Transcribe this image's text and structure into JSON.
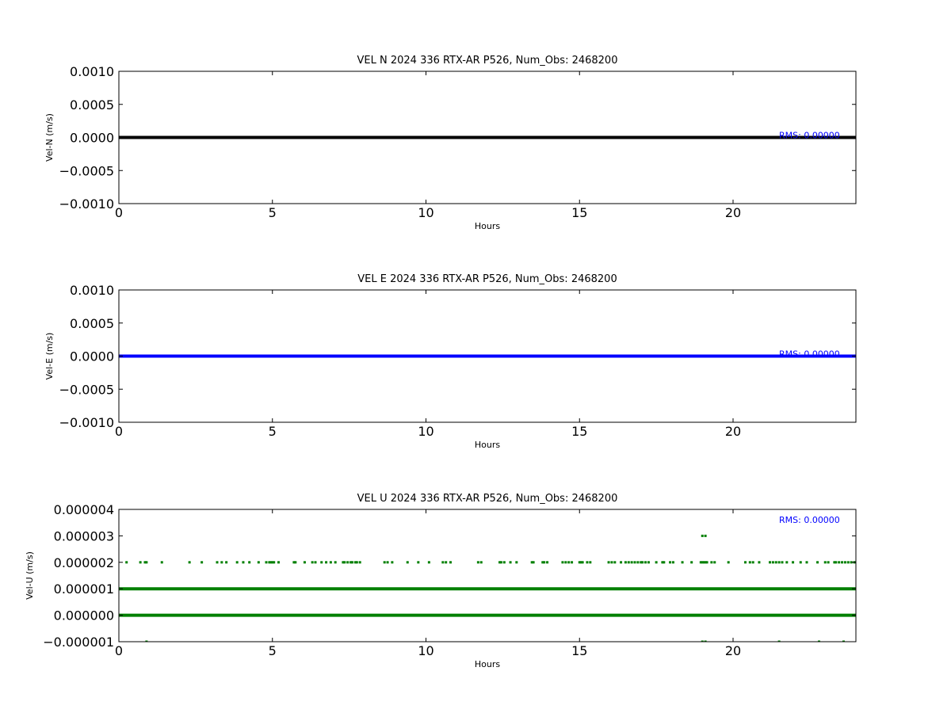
{
  "chart_data": [
    {
      "type": "line",
      "title": "VEL N 2024 336 RTX-AR  P526, Num_Obs: 2468200",
      "xlabel": "Hours",
      "ylabel": "Vel-N (m/s)",
      "xlim": [
        0,
        24
      ],
      "ylim": [
        -0.001,
        0.001
      ],
      "xticks": [
        0,
        5,
        10,
        15,
        20
      ],
      "xtick_labels": [
        "0",
        "5",
        "10",
        "15",
        "20"
      ],
      "yticks": [
        -0.001,
        -0.0005,
        0,
        0.0005,
        0.001
      ],
      "ytick_labels": [
        "−0.0010",
        "−0.0005",
        "0.0000",
        "0.0005",
        "0.0010"
      ],
      "grid": false,
      "color": "#000000",
      "annotation": "RMS:  0.00000",
      "annotation_color": "#0000ff",
      "series": [
        {
          "values_constant": 0,
          "x_range": [
            0,
            24
          ]
        }
      ]
    },
    {
      "type": "line",
      "title": "VEL E 2024 336 RTX-AR  P526, Num_Obs: 2468200",
      "xlabel": "Hours",
      "ylabel": "Vel-E (m/s)",
      "xlim": [
        0,
        24
      ],
      "ylim": [
        -0.001,
        0.001
      ],
      "xticks": [
        0,
        5,
        10,
        15,
        20
      ],
      "xtick_labels": [
        "0",
        "5",
        "10",
        "15",
        "20"
      ],
      "yticks": [
        -0.001,
        -0.0005,
        0,
        0.0005,
        0.001
      ],
      "ytick_labels": [
        "−0.0010",
        "−0.0005",
        "0.0000",
        "0.0005",
        "0.0010"
      ],
      "grid": false,
      "color": "#0000ff",
      "annotation": "RMS:  0.00000",
      "annotation_color": "#0000ff",
      "series": [
        {
          "values_constant": 0,
          "x_range": [
            0,
            24
          ]
        }
      ]
    },
    {
      "type": "scatter",
      "title": "VEL U 2024 336 RTX-AR  P526, Num_Obs: 2468200",
      "xlabel": "Hours",
      "ylabel": "Vel-U (m/s)",
      "xlim": [
        0,
        24
      ],
      "ylim": [
        -1e-06,
        4e-06
      ],
      "xticks": [
        0,
        5,
        10,
        15,
        20
      ],
      "xtick_labels": [
        "0",
        "5",
        "10",
        "15",
        "20"
      ],
      "yticks": [
        -1e-06,
        0,
        1e-06,
        2e-06,
        3e-06,
        4e-06
      ],
      "ytick_labels": [
        "−0.000001",
        "0.000000",
        "0.000001",
        "0.000002",
        "0.000003",
        "0.000004"
      ],
      "grid": false,
      "color": "#008000",
      "annotation": "RMS:  0.00000",
      "annotation_color": "#0000ff",
      "dense_levels": [
        {
          "y": 0,
          "x_range": [
            0,
            24
          ]
        },
        {
          "y": 1e-06,
          "x_range": [
            0,
            24
          ]
        }
      ],
      "points_y_2e-6": [
        0.25,
        0.7,
        0.85,
        0.9,
        1.4,
        2.3,
        2.7,
        3.2,
        3.35,
        3.5,
        3.85,
        4.05,
        4.25,
        4.55,
        4.8,
        4.9,
        4.95,
        5.0,
        5.05,
        5.2,
        5.7,
        5.75,
        6.05,
        6.3,
        6.4,
        6.6,
        6.75,
        6.9,
        7.05,
        7.3,
        7.35,
        7.45,
        7.55,
        7.6,
        7.7,
        7.75,
        7.85,
        8.65,
        8.75,
        8.9,
        9.4,
        9.75,
        10.1,
        10.55,
        10.65,
        10.8,
        11.7,
        11.8,
        12.4,
        12.45,
        12.55,
        12.75,
        12.95,
        13.45,
        13.5,
        13.8,
        13.85,
        13.95,
        14.45,
        14.55,
        14.65,
        14.75,
        15.0,
        15.05,
        15.1,
        15.25,
        15.35,
        15.95,
        16.05,
        16.15,
        16.35,
        16.5,
        16.6,
        16.7,
        16.8,
        16.9,
        17.0,
        17.05,
        17.15,
        17.25,
        17.5,
        17.7,
        17.75,
        17.95,
        18.05,
        18.35,
        18.65,
        18.95,
        19.0,
        19.05,
        19.1,
        19.15,
        19.3,
        19.4,
        19.85,
        20.4,
        20.55,
        20.65,
        20.85,
        21.2,
        21.3,
        21.4,
        21.5,
        21.6,
        21.75,
        21.95,
        22.2,
        22.4,
        22.75,
        23.0,
        23.1,
        23.3,
        23.35,
        23.45,
        23.55,
        23.65,
        23.75,
        23.85,
        23.95
      ],
      "points_y_3e-6": [
        19.0,
        19.1
      ],
      "points_y_-1e-6": [
        0.9,
        19.0,
        19.1,
        21.5,
        22.8,
        23.6
      ]
    }
  ]
}
